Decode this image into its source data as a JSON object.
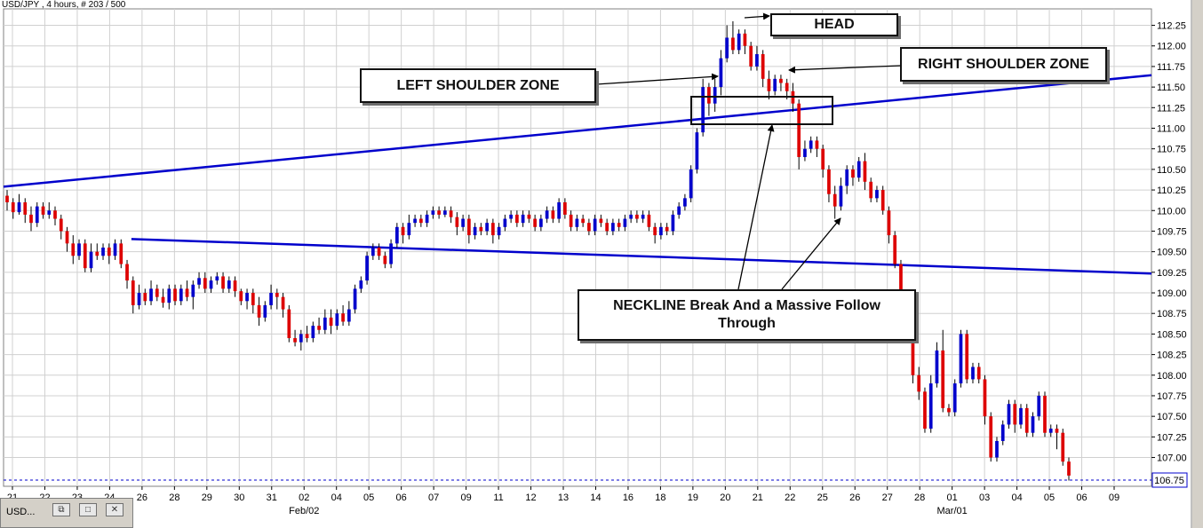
{
  "header": {
    "title": "USD/JPY , 4 hours, # 203 / 500"
  },
  "window_tab": {
    "label": "USD...",
    "restore_icon": "restore-icon",
    "maximize_icon": "maximize-icon",
    "close_icon": "close-icon"
  },
  "annotations": {
    "head": "HEAD",
    "left_shoulder": "LEFT SHOULDER ZONE",
    "right_shoulder": "RIGHT SHOULDER ZONE",
    "neckline": "NECKLINE Break And a Massive Follow Through"
  },
  "current_price_label": "106.75",
  "colors": {
    "up_candle": "#0000cc",
    "down_candle": "#dd0000",
    "trendline": "#0000cc",
    "grid": "#d0d0d0",
    "price_box": "#0000cc"
  },
  "chart_data": {
    "type": "candlestick",
    "symbol": "USD/JPY",
    "timeframe": "4 hours",
    "y_ticks": [
      107.0,
      107.25,
      107.5,
      107.75,
      108.0,
      108.25,
      108.5,
      108.75,
      109.0,
      109.25,
      109.5,
      109.75,
      110.0,
      110.25,
      110.5,
      110.75,
      111.0,
      111.25,
      111.5,
      111.75,
      112.0,
      112.25
    ],
    "ylim": [
      106.65,
      112.45
    ],
    "x_ticks": [
      "21",
      "22",
      "23",
      "24",
      "26",
      "28",
      "29",
      "30",
      "31",
      "02",
      "04",
      "05",
      "06",
      "07",
      "09",
      "11",
      "12",
      "13",
      "14",
      "16",
      "18",
      "19",
      "20",
      "21",
      "22",
      "25",
      "26",
      "27",
      "28",
      "01",
      "03",
      "04",
      "05",
      "06",
      "09"
    ],
    "x_sublabels": [
      {
        "label": "Feb/02",
        "below": "02"
      },
      {
        "label": "Mar/01",
        "below": "01"
      }
    ],
    "trendlines": [
      {
        "name": "upper-trendline",
        "from": {
          "x": "21",
          "y": 110.3
        },
        "to": {
          "x": "09",
          "y": 111.6
        }
      },
      {
        "name": "neckline",
        "from": {
          "x": "26",
          "y": 109.65
        },
        "to": {
          "x": "09",
          "y": 109.25
        }
      }
    ],
    "current_price": 106.75,
    "grid": true,
    "candles": [
      [
        110.18,
        110.1,
        110.25,
        110.0
      ],
      [
        110.1,
        109.98,
        110.15,
        109.9
      ],
      [
        109.98,
        110.1,
        110.2,
        109.95
      ],
      [
        110.1,
        109.95,
        110.15,
        109.85
      ],
      [
        109.95,
        109.85,
        110.05,
        109.75
      ],
      [
        109.85,
        110.05,
        110.1,
        109.8
      ],
      [
        110.05,
        109.95,
        110.1,
        109.9
      ],
      [
        109.95,
        110.0,
        110.1,
        109.9
      ],
      [
        110.0,
        109.9,
        110.05,
        109.82
      ],
      [
        109.9,
        109.75,
        109.95,
        109.65
      ],
      [
        109.75,
        109.6,
        109.8,
        109.5
      ],
      [
        109.6,
        109.45,
        109.7,
        109.35
      ],
      [
        109.45,
        109.6,
        109.65,
        109.4
      ],
      [
        109.6,
        109.3,
        109.65,
        109.25
      ],
      [
        109.3,
        109.5,
        109.6,
        109.25
      ],
      [
        109.5,
        109.45,
        109.6,
        109.4
      ],
      [
        109.45,
        109.55,
        109.6,
        109.4
      ],
      [
        109.55,
        109.45,
        109.6,
        109.35
      ],
      [
        109.45,
        109.6,
        109.65,
        109.4
      ],
      [
        109.6,
        109.35,
        109.65,
        109.3
      ],
      [
        109.35,
        109.15,
        109.4,
        109.05
      ],
      [
        109.15,
        108.85,
        109.2,
        108.75
      ],
      [
        108.85,
        109.0,
        109.1,
        108.8
      ],
      [
        109.0,
        108.9,
        109.05,
        108.85
      ],
      [
        108.9,
        109.05,
        109.15,
        108.85
      ],
      [
        109.05,
        108.95,
        109.1,
        108.9
      ],
      [
        108.95,
        108.88,
        109.05,
        108.82
      ],
      [
        108.88,
        109.05,
        109.1,
        108.8
      ],
      [
        109.05,
        108.9,
        109.1,
        108.85
      ],
      [
        108.9,
        109.05,
        109.1,
        108.85
      ],
      [
        109.05,
        108.95,
        109.15,
        108.9
      ],
      [
        108.95,
        109.1,
        109.15,
        108.8
      ],
      [
        109.1,
        109.18,
        109.25,
        109.05
      ],
      [
        109.18,
        109.05,
        109.25,
        109.0
      ],
      [
        109.05,
        109.15,
        109.2,
        109.0
      ],
      [
        109.15,
        109.2,
        109.25,
        109.1
      ],
      [
        109.2,
        109.05,
        109.25,
        109.0
      ],
      [
        109.05,
        109.15,
        109.2,
        109.0
      ],
      [
        109.15,
        109.02,
        109.2,
        108.95
      ],
      [
        109.02,
        108.9,
        109.05,
        108.85
      ],
      [
        108.9,
        109.0,
        109.05,
        108.8
      ],
      [
        109.0,
        108.85,
        109.05,
        108.75
      ],
      [
        108.85,
        108.7,
        108.95,
        108.6
      ],
      [
        108.7,
        108.85,
        108.9,
        108.65
      ],
      [
        108.85,
        109.0,
        109.1,
        108.8
      ],
      [
        109.0,
        108.95,
        109.05,
        108.8
      ],
      [
        108.95,
        108.8,
        109.0,
        108.7
      ],
      [
        108.8,
        108.45,
        108.85,
        108.4
      ],
      [
        108.45,
        108.4,
        108.55,
        108.35
      ],
      [
        108.4,
        108.5,
        108.55,
        108.3
      ],
      [
        108.5,
        108.45,
        108.6,
        108.4
      ],
      [
        108.45,
        108.6,
        108.65,
        108.4
      ],
      [
        108.6,
        108.55,
        108.7,
        108.5
      ],
      [
        108.55,
        108.7,
        108.8,
        108.5
      ],
      [
        108.7,
        108.6,
        108.8,
        108.5
      ],
      [
        108.6,
        108.75,
        108.8,
        108.55
      ],
      [
        108.75,
        108.65,
        108.85,
        108.6
      ],
      [
        108.65,
        108.8,
        108.9,
        108.6
      ],
      [
        108.8,
        109.05,
        109.1,
        108.75
      ],
      [
        109.05,
        109.15,
        109.2,
        109.0
      ],
      [
        109.15,
        109.45,
        109.5,
        109.1
      ],
      [
        109.45,
        109.55,
        109.6,
        109.4
      ],
      [
        109.55,
        109.45,
        109.6,
        109.4
      ],
      [
        109.45,
        109.35,
        109.5,
        109.3
      ],
      [
        109.35,
        109.6,
        109.65,
        109.3
      ],
      [
        109.6,
        109.8,
        109.85,
        109.55
      ],
      [
        109.8,
        109.7,
        109.85,
        109.6
      ],
      [
        109.7,
        109.85,
        109.95,
        109.65
      ],
      [
        109.85,
        109.9,
        109.95,
        109.8
      ],
      [
        109.9,
        109.85,
        109.95,
        109.8
      ],
      [
        109.85,
        109.95,
        110.0,
        109.8
      ],
      [
        109.95,
        110.0,
        110.05,
        109.9
      ],
      [
        110.0,
        109.95,
        110.05,
        109.9
      ],
      [
        109.95,
        110.0,
        110.05,
        109.92
      ],
      [
        110.0,
        109.92,
        110.05,
        109.85
      ],
      [
        109.92,
        109.8,
        109.98,
        109.7
      ],
      [
        109.8,
        109.9,
        109.95,
        109.75
      ],
      [
        109.9,
        109.7,
        109.95,
        109.6
      ],
      [
        109.7,
        109.8,
        109.85,
        109.65
      ],
      [
        109.8,
        109.75,
        109.85,
        109.7
      ],
      [
        109.75,
        109.85,
        109.9,
        109.7
      ],
      [
        109.85,
        109.7,
        109.9,
        109.6
      ],
      [
        109.7,
        109.8,
        109.85,
        109.65
      ],
      [
        109.8,
        109.9,
        109.95,
        109.75
      ],
      [
        109.9,
        109.95,
        110.0,
        109.85
      ],
      [
        109.95,
        109.85,
        110.0,
        109.8
      ],
      [
        109.85,
        109.95,
        110.0,
        109.8
      ],
      [
        109.95,
        109.9,
        110.0,
        109.85
      ],
      [
        109.9,
        109.8,
        109.95,
        109.75
      ],
      [
        109.8,
        109.9,
        109.95,
        109.75
      ],
      [
        109.9,
        110.0,
        110.05,
        109.85
      ],
      [
        110.0,
        109.9,
        110.05,
        109.85
      ],
      [
        109.9,
        110.1,
        110.15,
        109.85
      ],
      [
        110.1,
        109.95,
        110.15,
        109.9
      ],
      [
        109.95,
        109.8,
        110.0,
        109.75
      ],
      [
        109.8,
        109.9,
        109.95,
        109.75
      ],
      [
        109.9,
        109.85,
        109.95,
        109.8
      ],
      [
        109.85,
        109.75,
        109.9,
        109.7
      ],
      [
        109.75,
        109.9,
        109.95,
        109.7
      ],
      [
        109.9,
        109.85,
        109.95,
        109.8
      ],
      [
        109.85,
        109.75,
        109.9,
        109.7
      ],
      [
        109.75,
        109.85,
        109.9,
        109.7
      ],
      [
        109.85,
        109.8,
        109.9,
        109.75
      ],
      [
        109.8,
        109.9,
        109.95,
        109.75
      ],
      [
        109.9,
        109.95,
        110.0,
        109.85
      ],
      [
        109.95,
        109.9,
        110.0,
        109.85
      ],
      [
        109.9,
        109.95,
        110.0,
        109.85
      ],
      [
        109.95,
        109.8,
        110.0,
        109.75
      ],
      [
        109.8,
        109.7,
        109.85,
        109.6
      ],
      [
        109.7,
        109.8,
        109.85,
        109.65
      ],
      [
        109.8,
        109.75,
        109.85,
        109.7
      ],
      [
        109.75,
        109.95,
        110.0,
        109.7
      ],
      [
        109.95,
        110.05,
        110.1,
        109.9
      ],
      [
        110.05,
        110.15,
        110.2,
        110.0
      ],
      [
        110.15,
        110.5,
        110.55,
        110.1
      ],
      [
        110.5,
        110.95,
        111.0,
        110.45
      ],
      [
        110.95,
        111.5,
        111.6,
        110.9
      ],
      [
        111.5,
        111.3,
        111.55,
        111.15
      ],
      [
        111.3,
        111.5,
        111.6,
        111.2
      ],
      [
        111.5,
        111.85,
        111.95,
        111.4
      ],
      [
        111.85,
        112.1,
        112.25,
        111.8
      ],
      [
        112.1,
        111.95,
        112.3,
        111.9
      ],
      [
        111.95,
        112.15,
        112.2,
        111.9
      ],
      [
        112.15,
        112.0,
        112.2,
        111.9
      ],
      [
        112.0,
        111.75,
        112.05,
        111.7
      ],
      [
        111.75,
        111.9,
        112.0,
        111.7
      ],
      [
        111.9,
        111.6,
        111.95,
        111.5
      ],
      [
        111.6,
        111.45,
        111.7,
        111.35
      ],
      [
        111.45,
        111.6,
        111.65,
        111.4
      ],
      [
        111.6,
        111.55,
        111.65,
        111.45
      ],
      [
        111.55,
        111.45,
        111.6,
        111.35
      ],
      [
        111.45,
        111.3,
        111.55,
        111.2
      ],
      [
        111.3,
        110.65,
        111.35,
        110.5
      ],
      [
        110.65,
        110.75,
        110.85,
        110.6
      ],
      [
        110.75,
        110.85,
        110.9,
        110.7
      ],
      [
        110.85,
        110.75,
        110.9,
        110.65
      ],
      [
        110.75,
        110.5,
        110.8,
        110.4
      ],
      [
        110.5,
        110.2,
        110.55,
        110.1
      ],
      [
        110.2,
        110.05,
        110.3,
        109.9
      ],
      [
        110.05,
        110.3,
        110.4,
        110.0
      ],
      [
        110.3,
        110.5,
        110.55,
        110.2
      ],
      [
        110.5,
        110.4,
        110.55,
        110.3
      ],
      [
        110.4,
        110.6,
        110.65,
        110.35
      ],
      [
        110.6,
        110.35,
        110.7,
        110.25
      ],
      [
        110.35,
        110.15,
        110.4,
        110.1
      ],
      [
        110.15,
        110.25,
        110.3,
        110.1
      ],
      [
        110.25,
        110.0,
        110.3,
        109.95
      ],
      [
        110.0,
        109.7,
        110.05,
        109.6
      ],
      [
        109.7,
        109.35,
        109.75,
        109.3
      ],
      [
        109.35,
        108.95,
        109.4,
        108.85
      ],
      [
        108.95,
        108.6,
        109.0,
        108.5
      ],
      [
        108.6,
        108.0,
        108.65,
        107.9
      ],
      [
        108.0,
        107.8,
        108.1,
        107.7
      ],
      [
        107.8,
        107.35,
        107.85,
        107.3
      ],
      [
        107.35,
        107.9,
        108.0,
        107.3
      ],
      [
        107.9,
        108.3,
        108.4,
        107.85
      ],
      [
        108.3,
        107.6,
        108.55,
        107.55
      ],
      [
        107.6,
        107.55,
        107.65,
        107.5
      ],
      [
        107.55,
        107.9,
        107.95,
        107.5
      ],
      [
        107.9,
        108.5,
        108.55,
        107.85
      ],
      [
        108.5,
        107.95,
        108.55,
        107.9
      ],
      [
        107.95,
        108.1,
        108.15,
        107.9
      ],
      [
        108.1,
        107.95,
        108.15,
        107.9
      ],
      [
        107.95,
        107.5,
        108.0,
        107.4
      ],
      [
        107.5,
        107.0,
        107.55,
        106.95
      ],
      [
        107.0,
        107.2,
        107.25,
        106.95
      ],
      [
        107.2,
        107.4,
        107.45,
        107.15
      ],
      [
        107.4,
        107.65,
        107.7,
        107.35
      ],
      [
        107.65,
        107.4,
        107.7,
        107.3
      ],
      [
        107.4,
        107.6,
        107.65,
        107.35
      ],
      [
        107.6,
        107.3,
        107.65,
        107.25
      ],
      [
        107.3,
        107.5,
        107.55,
        107.25
      ],
      [
        107.5,
        107.75,
        107.8,
        107.45
      ],
      [
        107.75,
        107.3,
        107.8,
        107.25
      ],
      [
        107.3,
        107.35,
        107.4,
        107.25
      ],
      [
        107.35,
        107.3,
        107.4,
        107.1
      ],
      [
        107.3,
        106.95,
        107.35,
        106.9
      ],
      [
        106.95,
        106.78,
        107.0,
        106.72
      ]
    ]
  }
}
